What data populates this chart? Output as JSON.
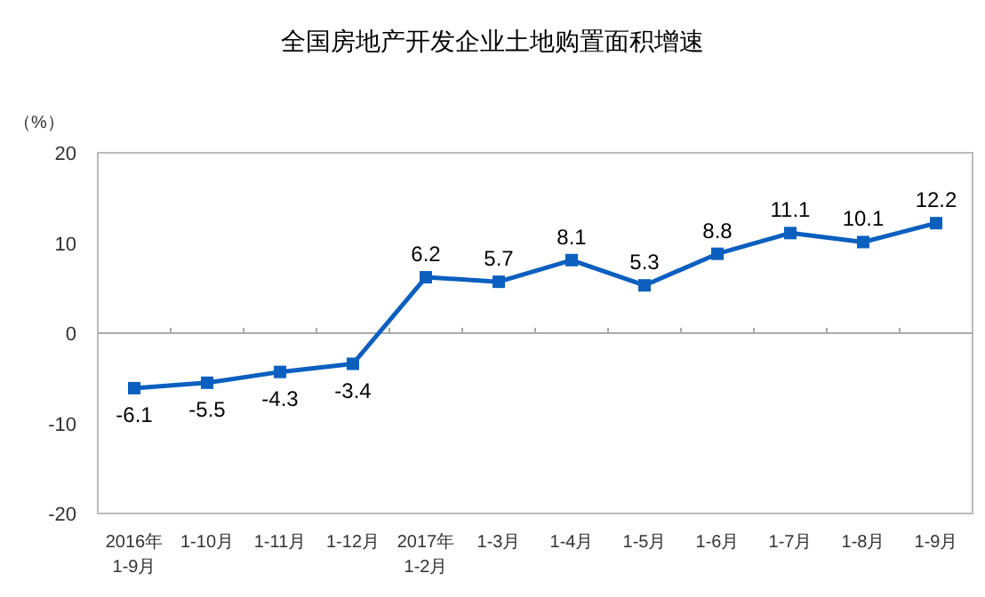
{
  "chart_data": {
    "type": "line",
    "title": "全国房地产开发企业土地购置面积增速",
    "ylabel": "（%）",
    "categories": [
      "2016年\n1-9月",
      "1-10月",
      "1-11月",
      "1-12月",
      "2017年\n1-2月",
      "1-3月",
      "1-4月",
      "1-5月",
      "1-6月",
      "1-7月",
      "1-8月",
      "1-9月"
    ],
    "series": [
      {
        "color": "#0b5fbf",
        "values": [
          -6.1,
          -5.5,
          -4.3,
          -3.4,
          6.2,
          5.7,
          8.1,
          5.3,
          8.8,
          11.1,
          10.1,
          12.2
        ]
      }
    ],
    "ylim": [
      -20,
      20
    ],
    "yticks": [
      -20,
      -10,
      0,
      10,
      20
    ],
    "data_labels": true,
    "marker": "square",
    "line_style": "solid"
  }
}
